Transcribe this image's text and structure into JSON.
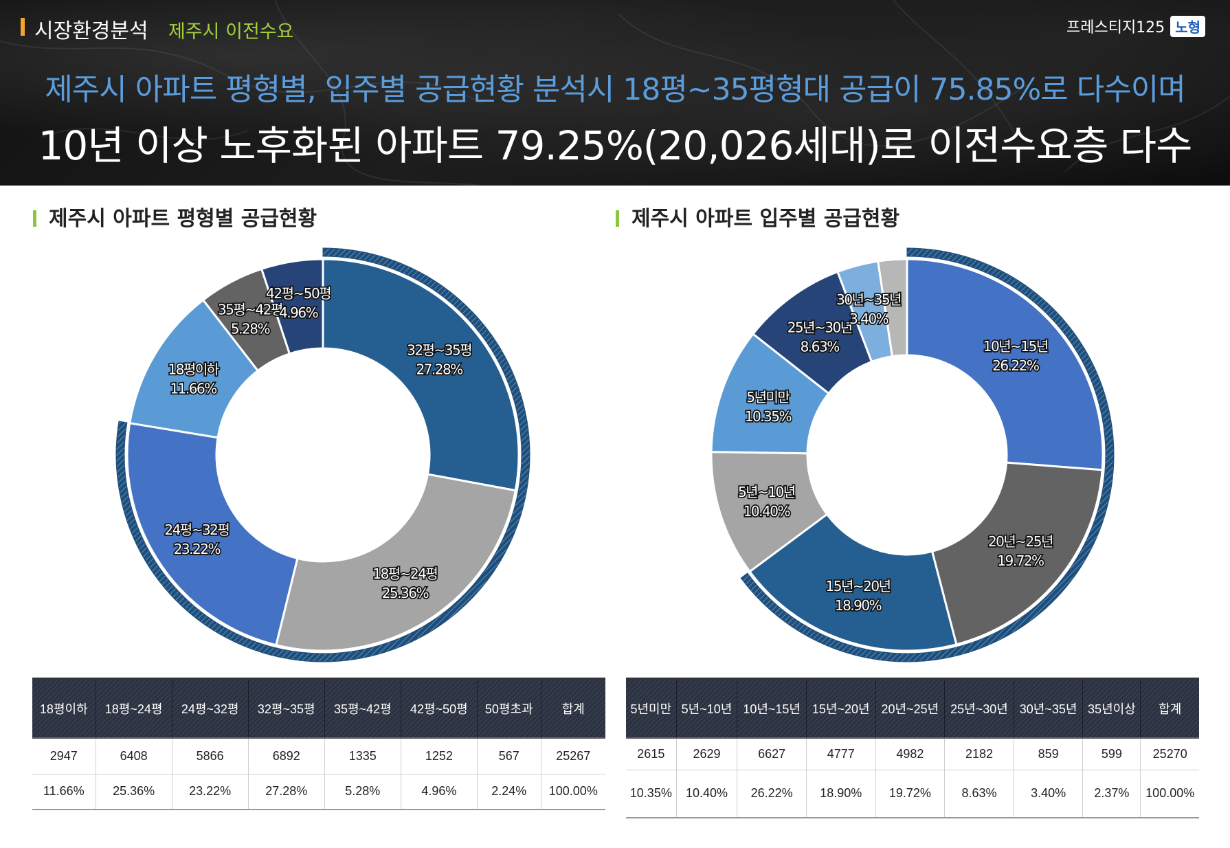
{
  "header": {
    "section_label": "시장환경분석",
    "section_sub": "제주시 이전수요",
    "brand_name": "프레스티지125",
    "brand_badge": "노형",
    "headline_1": "제주시 아파트 평형별, 입주별 공급현황 분석시 18평~35평형대 공급이 75.85%로 다수이며",
    "headline_2": "10년 이상 노후화된 아파트 79.25%(20,026세대)로 이전수요층 다수"
  },
  "chart_left_title": "제주시 아파트 평형별 공급현황",
  "chart_right_title": "제주시 아파트 입주별 공급현황",
  "chart_data": [
    {
      "type": "pie",
      "title": "제주시 아파트 평형별 공급현황",
      "categories": [
        "32평~35평",
        "18평~24평",
        "24평~32평",
        "18평이하",
        "35평~42평",
        "42평~50평"
      ],
      "values": [
        27.28,
        25.36,
        23.22,
        11.66,
        5.28,
        4.96
      ],
      "labels": [
        "27.28%",
        "25.36%",
        "23.22%",
        "11.66%",
        "5.28%",
        "4.96%"
      ],
      "colors": [
        "#255e91",
        "#a5a5a5",
        "#4472c4",
        "#5b9bd5",
        "#636363",
        "#264478"
      ],
      "highlight_range": "18평~35평"
    },
    {
      "type": "pie",
      "title": "제주시 아파트 입주별 공급현황",
      "categories": [
        "10년~15년",
        "20년~25년",
        "15년~20년",
        "5년~10년",
        "5년미만",
        "25년~30년",
        "30년~35년",
        "35년이상"
      ],
      "values": [
        26.22,
        19.72,
        18.9,
        10.4,
        10.35,
        8.63,
        3.4,
        2.37
      ],
      "labels": [
        "26.22%",
        "19.72%",
        "18.90%",
        "10.40%",
        "10.35%",
        "8.63%",
        "3.40%",
        ""
      ],
      "colors": [
        "#4472c4",
        "#636363",
        "#255e91",
        "#a5a5a5",
        "#5b9bd5",
        "#264478",
        "#7cafdd",
        "#b7b7b7"
      ],
      "highlight_range": "10년 이상"
    }
  ],
  "table_left": {
    "headers": [
      "18평이하",
      "18평~24평",
      "24평~32평",
      "32평~35평",
      "35평~42평",
      "42평~50평",
      "50평초과",
      "합계"
    ],
    "counts": [
      "2947",
      "6408",
      "5866",
      "6892",
      "1335",
      "1252",
      "567",
      "25267"
    ],
    "percents": [
      "11.66%",
      "25.36%",
      "23.22%",
      "27.28%",
      "5.28%",
      "4.96%",
      "2.24%",
      "100.00%"
    ]
  },
  "table_right": {
    "headers": [
      "5년미만",
      "5년~10년",
      "10년~15년",
      "15년~20년",
      "20년~25년",
      "25년~30년",
      "30년~35년",
      "35년이상",
      "합계"
    ],
    "counts": [
      "2615",
      "2629",
      "6627",
      "4777",
      "4982",
      "2182",
      "859",
      "599",
      "25270"
    ],
    "percents": [
      "10.35%",
      "10.40%",
      "26.22%",
      "18.90%",
      "19.72%",
      "8.63%",
      "3.40%",
      "2.37%",
      "100.00%"
    ]
  }
}
